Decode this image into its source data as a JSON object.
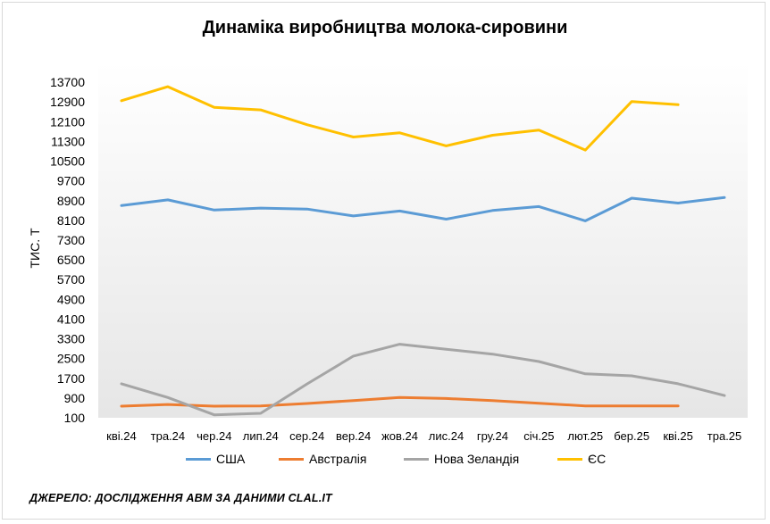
{
  "chart_data": {
    "type": "line",
    "title": "Динаміка виробництва молока-сировини",
    "ylabel": "ТИС. Т",
    "xlabel": "",
    "categories": [
      "кві.24",
      "тра.24",
      "чер.24",
      "лип.24",
      "сер.24",
      "вер.24",
      "жов.24",
      "лис.24",
      "гру.24",
      "січ.25",
      "лют.25",
      "бер.25",
      "кві.25",
      "тра.25"
    ],
    "ylim": [
      100,
      14500
    ],
    "yticks": [
      100,
      900,
      1700,
      2500,
      3300,
      4100,
      4900,
      5700,
      6500,
      7300,
      8100,
      8900,
      9700,
      10500,
      11300,
      12100,
      12900,
      13700
    ],
    "grid": false,
    "legend_position": "bottom",
    "series": [
      {
        "name": "США",
        "color": "#5b9bd5",
        "values": [
          8700,
          8930,
          8520,
          8600,
          8560,
          8280,
          8480,
          8150,
          8500,
          8660,
          8080,
          9000,
          8800,
          9030
        ]
      },
      {
        "name": "Австралія",
        "color": "#ed7d31",
        "values": [
          570,
          640,
          570,
          580,
          680,
          800,
          920,
          880,
          800,
          690,
          580,
          580,
          580,
          null
        ]
      },
      {
        "name": "Нова Зеландія",
        "color": "#a5a5a5",
        "values": [
          1480,
          920,
          220,
          280,
          1470,
          2600,
          3080,
          2880,
          2680,
          2380,
          1880,
          1800,
          1480,
          1000
        ]
      },
      {
        "name": "ЄС",
        "color": "#ffc000",
        "values": [
          12950,
          13520,
          12680,
          12580,
          11980,
          11480,
          11650,
          11120,
          11550,
          11760,
          10950,
          12920,
          12790,
          null
        ]
      }
    ]
  },
  "footer": {
    "source": "ДЖЕРЕЛО: ДОСЛІДЖЕННЯ АВМ ЗА ДАНИМИ CLAL.IT"
  }
}
